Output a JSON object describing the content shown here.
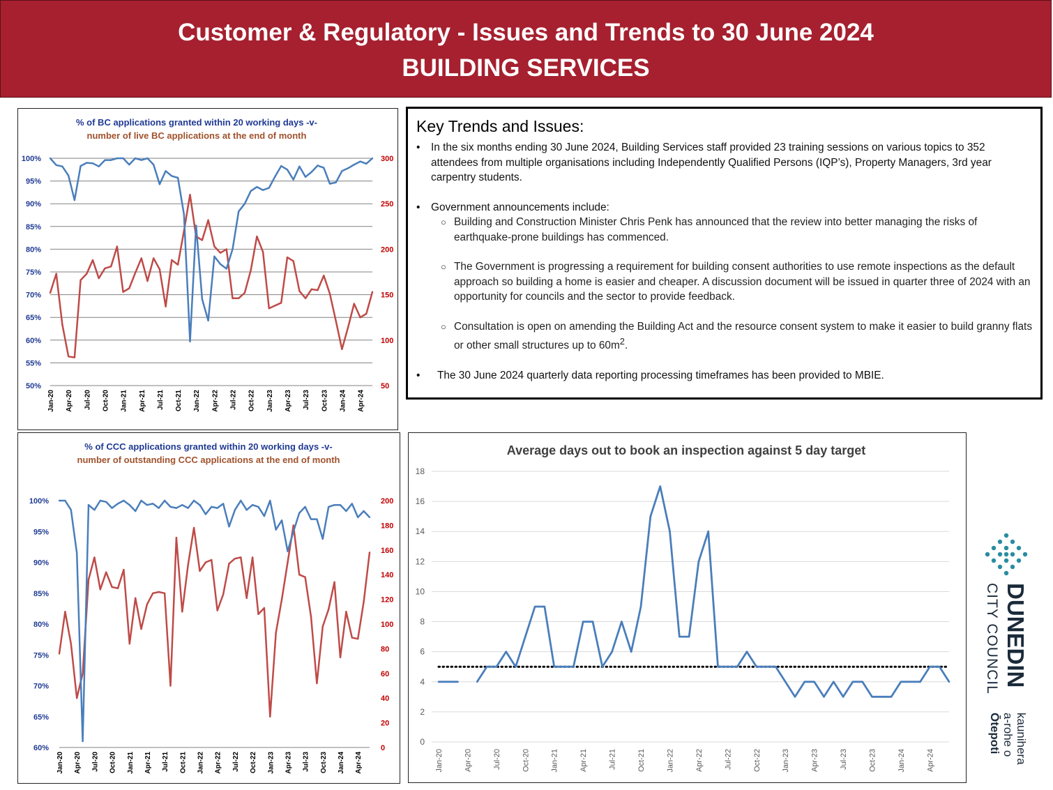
{
  "header": {
    "title_line1": "Customer & Regulatory - Issues and Trends to 30 June 2024",
    "title_line2": "BUILDING SERVICES"
  },
  "key_trends": {
    "title": "Key Trends and Issues:",
    "bullet1": "In the six months ending 30 June 2024, Building Services staff provided 23 training sessions on various topics to 352 attendees from multiple organisations including Independently Qualified Persons (IQP’s), Property Managers, 3rd year carpentry students.",
    "bullet2": "Government announcements include:",
    "sub1": "Building and Construction Minister Chris Penk has announced that the review into better managing the risks of earthquake-prone buildings has commenced.",
    "sub2": "The Government is progressing a requirement for building consent authorities to use remote inspections as the default approach so building a home is easier and cheaper. A discussion document will be issued in quarter three of 2024 with an opportunity for councils and the sector to provide feedback.",
    "sub3_text": "Consultation is open on amending the Building Act and the resource consent system to make it easier to build granny flats or other small structures up to 60m",
    "sub3_sup": "2",
    "sub3_end": ".",
    "bullet3": "The 30 June 2024 quarterly data reporting processing timeframes has been provided to MBIE."
  },
  "logo": {
    "name": "DUNEDIN",
    "sub": "CITY COUNCIL",
    "maori1": "kaunihera",
    "maori2": "a-rohe o",
    "maori3": "Ōtepoti"
  },
  "chart_data": [
    {
      "type": "line",
      "title_line1": "% of BC applications granted within 20 working days -v-",
      "title_line2": "number of live BC applications at the end of month",
      "x_tick_labels": [
        "Jan-20",
        "Apr-20",
        "Jul-20",
        "Oct-20",
        "Jan-21",
        "Apr-21",
        "Jul-21",
        "Oct-21",
        "Jan-22",
        "Apr-22",
        "Jul-22",
        "Oct-22",
        "Jan-23",
        "Apr-23",
        "Jul-23",
        "Oct-23",
        "Jan-24",
        "Apr-24"
      ],
      "y_left_ticks": [
        "100%",
        "95%",
        "90%",
        "85%",
        "80%",
        "75%",
        "70%",
        "65%",
        "60%",
        "55%",
        "50%"
      ],
      "y_right_ticks": [
        "300",
        "250",
        "200",
        "150",
        "100",
        "50"
      ],
      "ylim_left": [
        50,
        100
      ],
      "ylim_right": [
        50,
        300
      ],
      "grid": true,
      "colors": {
        "pct": "#4a7ebb",
        "count": "#be4b48",
        "title1": "#1f3a93",
        "title2": "#a0522d",
        "left_axis": "#1f3a93",
        "right_axis": "#c00000"
      },
      "series": [
        {
          "axis": "left",
          "values": [
            100,
            98.5,
            98.2,
            96.2,
            90.8,
            98.3,
            99,
            98.9,
            98.2,
            99.6,
            99.6,
            100,
            100,
            98.6,
            100,
            99.6,
            100,
            98.6,
            94.3,
            97.2,
            96.1,
            95.7,
            87.7,
            59.7,
            85.2,
            69,
            64.3,
            78.4,
            76.7,
            75.7,
            80,
            88.3,
            90,
            92.8,
            93.7,
            93,
            93.5,
            96,
            98.3,
            97.5,
            95.3,
            98.2,
            95.9,
            97,
            98.4,
            97.9,
            94.4,
            94.7,
            97.2,
            97.8,
            98.6,
            99.3,
            98.8,
            100
          ]
        },
        {
          "axis": "right",
          "values": [
            152,
            173,
            117,
            82,
            81,
            166,
            173,
            188,
            168,
            179,
            181,
            203,
            153,
            157,
            174,
            190,
            165,
            190,
            178,
            137,
            188,
            183,
            220,
            260,
            214,
            210,
            232,
            203,
            196,
            200,
            146,
            146,
            152,
            177,
            214,
            197,
            135,
            138,
            141,
            191,
            187,
            154,
            146,
            156,
            155,
            171,
            151,
            121,
            90,
            114,
            140,
            125,
            129,
            153
          ]
        }
      ]
    },
    {
      "type": "line",
      "title_line1": "% of CCC applications granted within 20 working days -v-",
      "title_line2": "number of outstanding CCC applications at the end of month",
      "x_tick_labels": [
        "Jan-20",
        "Apr-20",
        "Jul-20",
        "Oct-20",
        "Jan-21",
        "Apr-21",
        "Jul-21",
        "Oct-21",
        "Jan-22",
        "Apr-22",
        "Jul-22",
        "Oct-22",
        "Jan-23",
        "Apr-23",
        "Jul-23",
        "Oct-23",
        "Jan-24",
        "Apr-24"
      ],
      "y_left_ticks": [
        "100%",
        "95%",
        "90%",
        "85%",
        "80%",
        "75%",
        "70%",
        "65%",
        "60%"
      ],
      "y_right_ticks": [
        "200",
        "180",
        "160",
        "140",
        "120",
        "100",
        "80",
        "60",
        "40",
        "20",
        "0"
      ],
      "ylim_left": [
        60,
        100
      ],
      "ylim_right": [
        0,
        200
      ],
      "grid": false,
      "colors": {
        "pct": "#4a7ebb",
        "count": "#be4b48",
        "title1": "#1f3a93",
        "title2": "#a0522d",
        "left_axis": "#1f3a93",
        "right_axis": "#c00000"
      },
      "series": [
        {
          "axis": "left",
          "values": [
            100,
            100,
            98.5,
            91.5,
            61,
            99.3,
            98.5,
            100,
            99.8,
            98.8,
            99.5,
            100,
            99.3,
            98.3,
            100,
            99.3,
            99.5,
            98.8,
            100,
            99,
            98.8,
            99.3,
            98.8,
            100,
            99.3,
            97.8,
            99,
            98.8,
            99.5,
            95.8,
            98.5,
            100,
            98.5,
            99.3,
            99,
            97.5,
            100,
            95.3,
            96.8,
            91.8,
            95,
            98,
            99,
            97,
            97,
            93.8,
            99,
            99.3,
            99.3,
            98.3,
            99.5,
            97.3,
            98.3,
            97.3
          ]
        },
        {
          "axis": "right",
          "values": [
            76,
            110,
            84,
            40,
            60,
            136,
            154,
            128,
            142,
            130,
            129,
            144,
            84,
            121,
            96,
            116,
            125,
            126,
            125,
            50,
            170,
            110,
            148,
            178,
            143,
            150,
            152,
            111,
            124,
            149,
            153,
            154,
            121,
            154,
            108,
            113,
            25,
            93,
            120,
            150,
            180,
            140,
            138,
            106,
            52,
            98,
            112,
            134,
            73,
            110,
            89,
            88,
            118,
            158
          ]
        }
      ]
    },
    {
      "type": "line",
      "title": "Average days out to book an inspection against 5 day target",
      "x_tick_labels": [
        "Jan-20",
        "Apr-20",
        "Jul-20",
        "Oct-20",
        "Jan-21",
        "Apr-21",
        "Jul-21",
        "Oct-21",
        "Jan-22",
        "Apr-22",
        "Jul-22",
        "Oct-22",
        "Jan-23",
        "Apr-23",
        "Jul-23",
        "Oct-23",
        "Jan-24",
        "Apr-24"
      ],
      "y_ticks": [
        "18",
        "16",
        "14",
        "12",
        "10",
        "8",
        "6",
        "4",
        "2",
        "0"
      ],
      "ylim": [
        0,
        18
      ],
      "grid": true,
      "target": 5,
      "colors": {
        "line": "#4a7ebb",
        "target": "#000000",
        "title": "#404040"
      },
      "series": [
        {
          "name": "",
          "values": [
            4,
            4,
            4,
            null,
            4,
            5,
            5,
            6,
            5,
            7,
            9,
            9,
            5,
            5,
            5,
            8,
            8,
            5,
            6,
            8,
            6,
            9,
            15,
            17,
            14,
            7,
            7,
            12,
            14,
            5,
            5,
            5,
            6,
            5,
            5,
            5,
            4,
            3,
            4,
            4,
            3,
            4,
            3,
            4,
            4,
            3,
            3,
            3,
            4,
            4,
            4,
            5,
            5,
            4
          ]
        }
      ]
    }
  ]
}
